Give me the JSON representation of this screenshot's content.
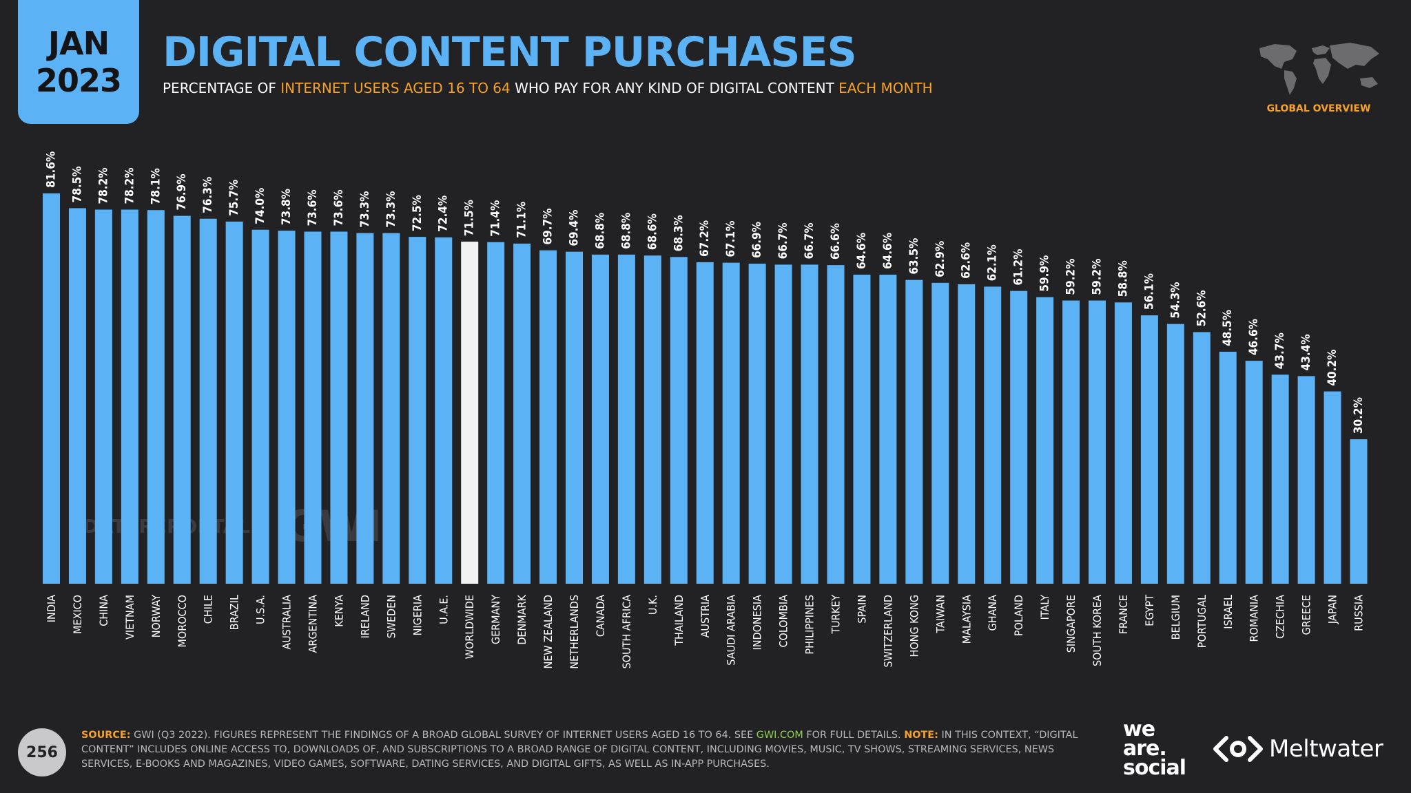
{
  "header": {
    "date_month": "JAN",
    "date_year": "2023",
    "title": "DIGITAL CONTENT PURCHASES",
    "subtitle": {
      "part1": "PERCENTAGE OF ",
      "highlight1": "INTERNET USERS AGED 16 TO 64",
      "part2": " WHO PAY FOR ANY KIND OF DIGITAL CONTENT ",
      "highlight2": "EACH MONTH"
    },
    "region_label": "GLOBAL OVERVIEW"
  },
  "watermarks": {
    "datareportal": "DATAREPORTAL",
    "gwi": "GWI."
  },
  "colors": {
    "bar": "#5bb2f5",
    "highlight_bar": "#f2f2f2",
    "accent": "#f5a12a",
    "background": "#222225",
    "link": "#8ed14f"
  },
  "chart_data": {
    "type": "bar",
    "title": "DIGITAL CONTENT PURCHASES",
    "xlabel": "",
    "ylabel": "",
    "ylim": [
      0,
      100
    ],
    "grid": false,
    "value_suffix": "%",
    "highlight_category": "WORLDWIDE",
    "categories": [
      "INDIA",
      "MEXICO",
      "CHINA",
      "VIETNAM",
      "NORWAY",
      "MOROCCO",
      "CHILE",
      "BRAZIL",
      "U.S.A.",
      "AUSTRALIA",
      "ARGENTINA",
      "KENYA",
      "IRELAND",
      "SWEDEN",
      "NIGERIA",
      "U.A.E.",
      "WORLDWIDE",
      "GERMANY",
      "DENMARK",
      "NEW ZEALAND",
      "NETHERLANDS",
      "CANADA",
      "SOUTH AFRICA",
      "U.K.",
      "THAILAND",
      "AUSTRIA",
      "SAUDI ARABIA",
      "INDONESIA",
      "COLOMBIA",
      "PHILIPPINES",
      "TURKEY",
      "SPAIN",
      "SWITZERLAND",
      "HONG KONG",
      "TAIWAN",
      "MALAYSIA",
      "GHANA",
      "POLAND",
      "ITALY",
      "SINGAPORE",
      "SOUTH KOREA",
      "FRANCE",
      "EGYPT",
      "BELGIUM",
      "PORTUGAL",
      "ISRAEL",
      "ROMANIA",
      "CZECHIA",
      "GREECE",
      "JAPAN",
      "RUSSIA"
    ],
    "values": [
      81.6,
      78.5,
      78.2,
      78.2,
      78.1,
      76.9,
      76.3,
      75.7,
      74.0,
      73.8,
      73.6,
      73.6,
      73.3,
      73.3,
      72.5,
      72.4,
      71.5,
      71.4,
      71.1,
      69.7,
      69.4,
      68.8,
      68.8,
      68.6,
      68.3,
      67.2,
      67.1,
      66.9,
      66.7,
      66.7,
      66.6,
      64.6,
      64.6,
      63.5,
      62.9,
      62.6,
      62.1,
      61.2,
      59.9,
      59.2,
      59.2,
      58.8,
      56.1,
      54.3,
      52.6,
      48.5,
      46.6,
      43.7,
      43.4,
      40.2,
      30.2
    ]
  },
  "footer": {
    "page_number": "256",
    "source_label": "SOURCE:",
    "source_text1": " GWI (Q3 2022). FIGURES REPRESENT THE FINDINGS OF A BROAD GLOBAL SURVEY OF INTERNET USERS AGED 16 TO 64. SEE ",
    "source_link": "GWI.COM",
    "source_text2": " FOR FULL DETAILS. ",
    "note_label": "NOTE:",
    "note_text": " IN THIS CONTEXT, “DIGITAL CONTENT” INCLUDES ONLINE ACCESS TO, DOWNLOADS OF, AND SUBSCRIPTIONS TO A BROAD RANGE OF DIGITAL CONTENT, INCLUDING MOVIES, MUSIC, TV SHOWS, STREAMING SERVICES, NEWS SERVICES, E-BOOKS AND MAGAZINES, VIDEO GAMES, SOFTWARE, DATING SERVICES, AND DIGITAL GIFTS, AS WELL AS IN-APP PURCHASES.",
    "brand1_line1": "we",
    "brand1_line2": "are.",
    "brand1_line3": "social",
    "brand2": "Meltwater"
  }
}
